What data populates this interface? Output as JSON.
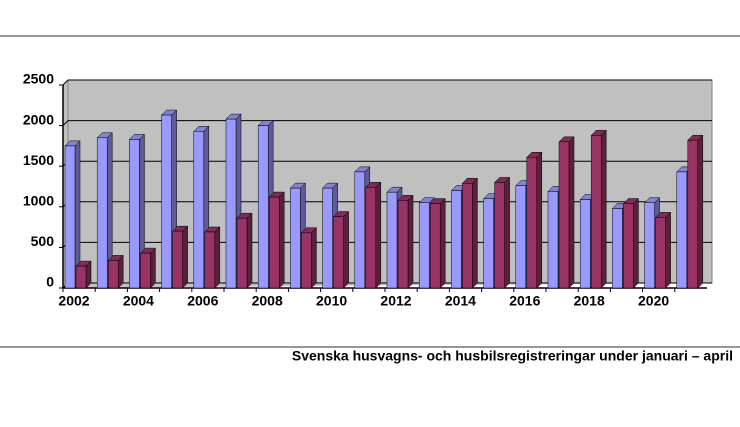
{
  "chart_data": {
    "type": "bar",
    "caption": "Svenska husvagns- och husbilsregistreringar under januari – april",
    "categories": [
      "2002",
      null,
      "2004",
      null,
      "2006",
      null,
      "2008",
      null,
      "2010",
      null,
      "2012",
      null,
      "2014",
      null,
      "2016",
      null,
      "2018",
      null,
      "2020",
      null
    ],
    "series": [
      {
        "color": "#9999ff",
        "values": [
          1750,
          1850,
          1830,
          2130,
          1930,
          2080,
          2000,
          1230,
          1230,
          1430,
          1180,
          1050,
          1200,
          1100,
          1260,
          1190,
          1090,
          980,
          1050,
          1430
        ]
      },
      {
        "color": "#993366",
        "values": [
          270,
          340,
          430,
          700,
          690,
          860,
          1120,
          680,
          880,
          1240,
          1080,
          1040,
          1290,
          1300,
          1610,
          1800,
          1880,
          1040,
          870,
          1820
        ]
      }
    ],
    "ylim": [
      0,
      2500
    ],
    "yticks": [
      0,
      500,
      1000,
      1500,
      2000,
      2500
    ],
    "grid": true
  }
}
